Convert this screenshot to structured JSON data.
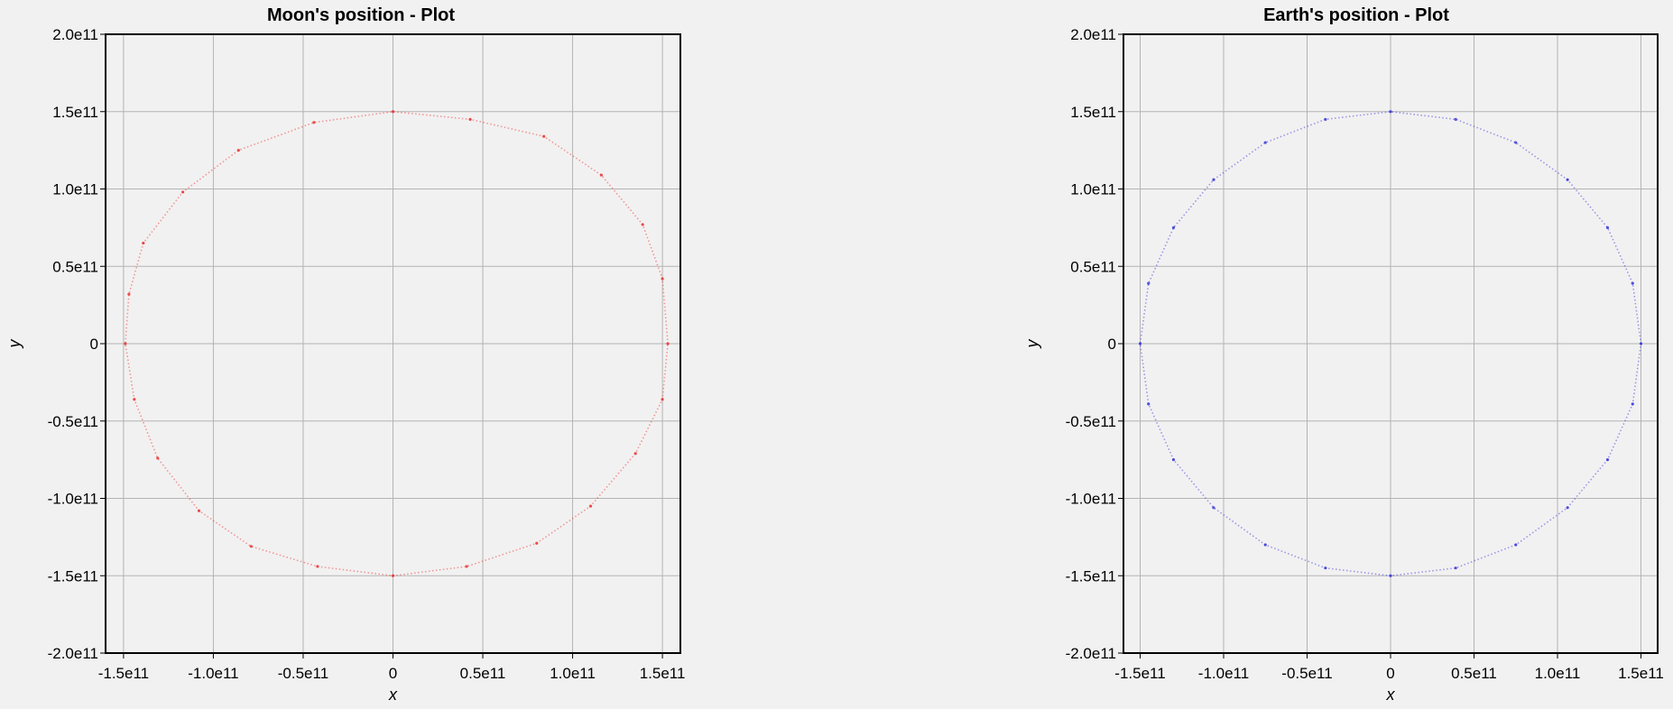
{
  "chart_data": [
    {
      "type": "scatter",
      "title": "Moon's position - Plot",
      "xlabel": "x",
      "ylabel": "y",
      "xlim": [
        -160000000000.0,
        160000000000.0
      ],
      "ylim": [
        -200000000000.0,
        200000000000.0
      ],
      "x_ticks": [
        -150000000000.0,
        -100000000000.0,
        -50000000000.0,
        0,
        50000000000.0,
        100000000000.0,
        150000000000.0
      ],
      "x_tick_labels": [
        "-1.5e11",
        "-1.0e11",
        "-0.5e11",
        "0",
        "0.5e11",
        "1.0e11",
        "1.5e11"
      ],
      "y_ticks": [
        200000000000.0,
        150000000000.0,
        100000000000.0,
        50000000000.0,
        0,
        -50000000000.0,
        -100000000000.0,
        -150000000000.0,
        -200000000000.0
      ],
      "y_tick_labels": [
        "2.0e11",
        "1.5e11",
        "1.0e11",
        "0.5e11",
        "0",
        "-0.5e11",
        "-1.0e11",
        "-1.5e11",
        "-2.0e11"
      ],
      "grid": true,
      "color": "#e8292b",
      "series": [
        {
          "x": [
            153000000000.0,
            150000000000.0,
            139000000000.0,
            116000000000.0,
            84000000000.0,
            43000000000.0,
            0,
            -44000000000.0,
            -86000000000.0,
            -117000000000.0,
            -139000000000.0,
            -147000000000.0,
            -149000000000.0,
            -144000000000.0,
            -131000000000.0,
            -108000000000.0,
            -79000000000.0,
            -42000000000.0,
            0,
            41000000000.0,
            80000000000.0,
            110000000000.0,
            135000000000.0,
            150000000000.0
          ],
          "y": [
            0,
            42000000000.0,
            77000000000.0,
            109000000000.0,
            134000000000.0,
            145000000000.0,
            150000000000.0,
            143000000000.0,
            125000000000.0,
            98000000000.0,
            65000000000.0,
            32000000000.0,
            0,
            -36000000000.0,
            -74000000000.0,
            -108000000000.0,
            -131000000000.0,
            -144000000000.0,
            -150000000000.0,
            -144000000000.0,
            -129000000000.0,
            -105000000000.0,
            -71000000000.0,
            -36000000000.0
          ]
        }
      ]
    },
    {
      "type": "scatter",
      "title": "Earth's position - Plot",
      "xlabel": "x",
      "ylabel": "y",
      "xlim": [
        -160000000000.0,
        160000000000.0
      ],
      "ylim": [
        -200000000000.0,
        200000000000.0
      ],
      "x_ticks": [
        -150000000000.0,
        -100000000000.0,
        -50000000000.0,
        0,
        50000000000.0,
        100000000000.0,
        150000000000.0
      ],
      "x_tick_labels": [
        "-1.5e11",
        "-1.0e11",
        "-0.5e11",
        "0",
        "0.5e11",
        "1.0e11",
        "1.5e11"
      ],
      "y_ticks": [
        200000000000.0,
        150000000000.0,
        100000000000.0,
        50000000000.0,
        0,
        -50000000000.0,
        -100000000000.0,
        -150000000000.0,
        -200000000000.0
      ],
      "y_tick_labels": [
        "2.0e11",
        "1.5e11",
        "1.0e11",
        "0.5e11",
        "0",
        "-0.5e11",
        "-1.0e11",
        "-1.5e11",
        "-2.0e11"
      ],
      "grid": true,
      "color": "#2b2bd9",
      "series": [
        {
          "x": [
            150000000000.0,
            145000000000.0,
            130000000000.0,
            106000000000.0,
            75000000000.0,
            39000000000.0,
            0,
            -39000000000.0,
            -75000000000.0,
            -106000000000.0,
            -130000000000.0,
            -145000000000.0,
            -150000000000.0,
            -145000000000.0,
            -130000000000.0,
            -106000000000.0,
            -75000000000.0,
            -39000000000.0,
            0,
            39000000000.0,
            75000000000.0,
            106000000000.0,
            130000000000.0,
            145000000000.0
          ],
          "y": [
            0,
            39000000000.0,
            75000000000.0,
            106000000000.0,
            130000000000.0,
            145000000000.0,
            150000000000.0,
            145000000000.0,
            130000000000.0,
            106000000000.0,
            75000000000.0,
            39000000000.0,
            0,
            -39000000000.0,
            -75000000000.0,
            -106000000000.0,
            -130000000000.0,
            -145000000000.0,
            -150000000000.0,
            -145000000000.0,
            -130000000000.0,
            -106000000000.0,
            -75000000000.0,
            -39000000000.0
          ]
        }
      ]
    }
  ]
}
